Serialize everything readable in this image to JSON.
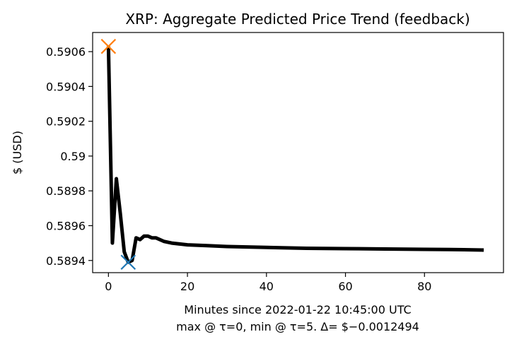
{
  "chart_data": {
    "type": "line",
    "title": "XRP: Aggregate Predicted Price Trend (feedback)",
    "xlabel": "Minutes since 2022-01-22 10:45:00 UTC",
    "xlabel2": "max @ τ=0, min @ τ=5. Δ= $−0.0012494",
    "ylabel": "$ (USD)",
    "xlim": [
      -4,
      100
    ],
    "ylim": [
      0.58933,
      0.59071
    ],
    "xticks": [
      0,
      20,
      40,
      60,
      80
    ],
    "xtick_labels": [
      "0",
      "20",
      "40",
      "60",
      "80"
    ],
    "yticks": [
      0.5894,
      0.5896,
      0.5898,
      0.59,
      0.5902,
      0.5904,
      0.5906
    ],
    "ytick_labels": [
      "0.5894",
      "0.5896",
      "0.5898",
      "0.59",
      "0.5902",
      "0.5904",
      "0.5906"
    ],
    "grid": false,
    "series": [
      {
        "color": "#000000",
        "x": [
          0,
          1,
          2,
          3,
          4,
          5,
          6,
          7,
          8,
          9,
          10,
          11,
          12,
          14,
          16,
          18,
          20,
          25,
          30,
          40,
          50,
          60,
          70,
          80,
          90,
          95
        ],
        "y": [
          0.59063,
          0.5895,
          0.58987,
          0.58967,
          0.58945,
          0.58939,
          0.5894,
          0.58953,
          0.58952,
          0.58954,
          0.58954,
          0.58953,
          0.58953,
          0.58951,
          0.5895,
          0.589495,
          0.58949,
          0.589485,
          0.58948,
          0.589475,
          0.58947,
          0.589468,
          0.589466,
          0.589464,
          0.589462,
          0.58946
        ]
      }
    ],
    "markers": [
      {
        "name": "max",
        "x": 0,
        "y": 0.59063,
        "color": "#ff7f0e",
        "symbol": "x"
      },
      {
        "name": "min",
        "x": 5,
        "y": 0.58939,
        "color": "#1f77b4",
        "symbol": "x"
      }
    ]
  }
}
